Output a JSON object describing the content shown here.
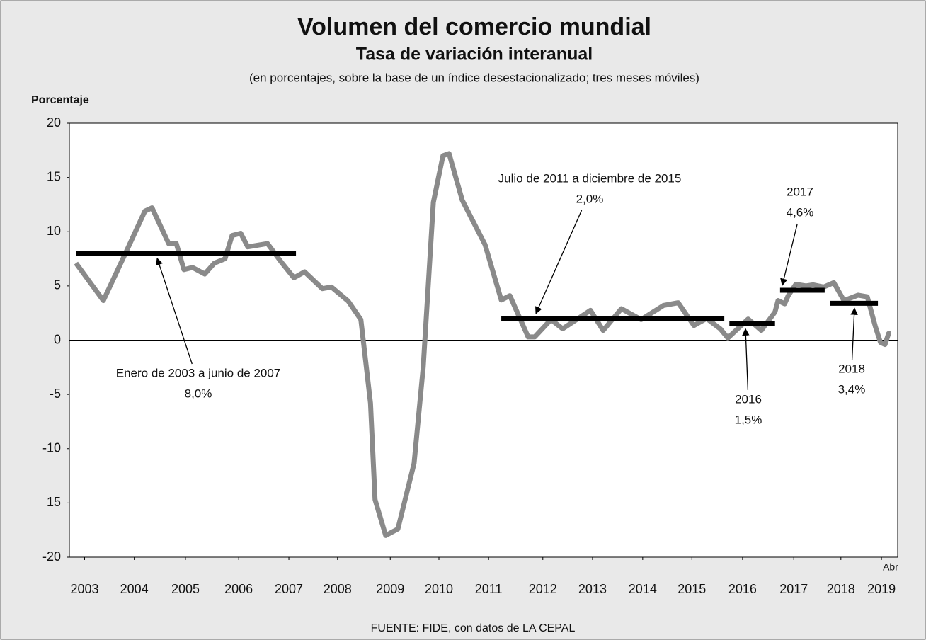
{
  "chart_data": {
    "type": "line",
    "title": "Volumen del comercio mundial",
    "subtitle": "Tasa de variación interanual",
    "note": "(en porcentajes, sobre la base de un índice desestacionalizado; tres meses móviles)",
    "y_label": "Porcentaje",
    "x_annotation": "Abr",
    "source": "FUENTE: FIDE, con datos de LA CEPAL",
    "xlim": [
      2003,
      2019.34
    ],
    "xticks": [
      {
        "value": 2003.3,
        "label": "2003"
      },
      {
        "value": 2004.28,
        "label": "2004"
      },
      {
        "value": 2005.29,
        "label": "2005"
      },
      {
        "value": 2006.34,
        "label": "2006"
      },
      {
        "value": 2007.33,
        "label": "2007"
      },
      {
        "value": 2008.29,
        "label": "2008"
      },
      {
        "value": 2009.33,
        "label": "2009"
      },
      {
        "value": 2010.29,
        "label": "2010"
      },
      {
        "value": 2011.27,
        "label": "2011"
      },
      {
        "value": 2012.34,
        "label": "2012"
      },
      {
        "value": 2013.32,
        "label": "2013"
      },
      {
        "value": 2014.31,
        "label": "2014"
      },
      {
        "value": 2015.28,
        "label": "2015"
      },
      {
        "value": 2016.28,
        "label": "2016"
      },
      {
        "value": 2017.29,
        "label": "2017"
      },
      {
        "value": 2018.22,
        "label": "2018"
      },
      {
        "value": 2019.02,
        "label": "2019"
      }
    ],
    "ylim": [
      -20,
      20
    ],
    "yticks": [
      20,
      15,
      10,
      5,
      0,
      -5,
      -10,
      {
        "value": -15,
        "label": "15"
      },
      -20
    ],
    "series": [
      {
        "color": "#8a8a8a",
        "x": [
          2003.13,
          2003.67,
          2004.12,
          2004.49,
          2004.63,
          2004.96,
          2005.11,
          2005.26,
          2005.43,
          2005.67,
          2005.86,
          2006.07,
          2006.21,
          2006.38,
          2006.52,
          2006.91,
          2007.18,
          2007.43,
          2007.64,
          2007.99,
          2008.17,
          2008.5,
          2008.75,
          2008.94,
          2009.03,
          2009.24,
          2009.48,
          2009.8,
          2009.98,
          2010.18,
          2010.37,
          2010.49,
          2010.75,
          2011.2,
          2011.52,
          2011.69,
          2012.05,
          2012.18,
          2012.5,
          2012.73,
          2013.28,
          2013.53,
          2013.89,
          2014.28,
          2014.72,
          2015.01,
          2015.32,
          2015.57,
          2015.84,
          2015.99,
          2016.39,
          2016.65,
          2016.92,
          2016.98,
          2017.11,
          2017.18,
          2017.33,
          2017.53,
          2017.67,
          2017.88,
          2018.08,
          2018.28,
          2018.56,
          2018.74,
          2018.9,
          2019.0,
          2019.09,
          2019.16,
          2019.2
        ],
        "values": [
          7.1,
          3.65,
          8.15,
          11.9,
          12.2,
          8.9,
          8.9,
          6.5,
          6.7,
          6.1,
          7.1,
          7.5,
          9.65,
          9.85,
          8.6,
          8.9,
          7.2,
          5.75,
          6.3,
          4.75,
          4.9,
          3.6,
          1.9,
          -5.8,
          -14.7,
          -18.0,
          -17.4,
          -11.35,
          -2.5,
          12.7,
          17.0,
          17.2,
          12.9,
          8.8,
          3.7,
          4.1,
          0.3,
          0.3,
          1.9,
          1.05,
          2.75,
          0.9,
          2.9,
          1.9,
          3.2,
          3.45,
          1.35,
          2.0,
          1.05,
          0.2,
          1.95,
          0.9,
          2.6,
          3.65,
          3.35,
          4.1,
          5.15,
          5.0,
          5.1,
          4.9,
          5.3,
          3.65,
          4.15,
          4.0,
          1.25,
          -0.2,
          -0.4,
          0.6,
          0.6
        ]
      }
    ],
    "averages": {
      "color": "#000000",
      "items": [
        {
          "label": "Enero de 2003 a junio de 2007",
          "value": 8.0,
          "value_label": "8,0%",
          "x": [
            2003.13,
            2007.47
          ]
        },
        {
          "label": "Julio de 2011 a diciembre de 2015",
          "value": 2.0,
          "value_label": "2,0%",
          "x": [
            2011.52,
            2015.92
          ]
        },
        {
          "label": "2016",
          "value": 1.5,
          "value_label": "1,5%",
          "x": [
            2016.02,
            2016.92
          ]
        },
        {
          "label": "2017",
          "value": 4.6,
          "value_label": "4,6%",
          "x": [
            2017.02,
            2017.9
          ]
        },
        {
          "label": "2018",
          "value": 3.4,
          "value_label": "3,4%",
          "x": [
            2018.0,
            2018.95
          ]
        }
      ]
    }
  }
}
